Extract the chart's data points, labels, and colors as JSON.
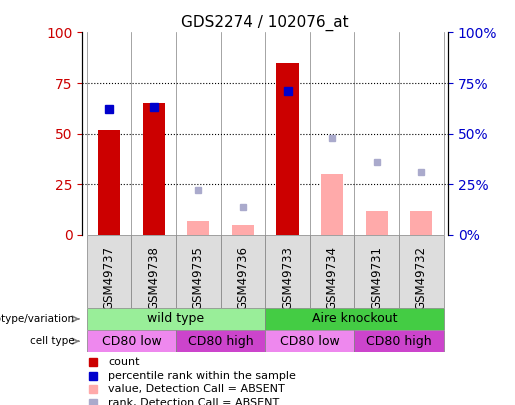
{
  "title": "GDS2274 / 102076_at",
  "samples": [
    "GSM49737",
    "GSM49738",
    "GSM49735",
    "GSM49736",
    "GSM49733",
    "GSM49734",
    "GSM49731",
    "GSM49732"
  ],
  "count_values": [
    52,
    65,
    null,
    null,
    85,
    null,
    null,
    null
  ],
  "rank_values": [
    62,
    63,
    null,
    null,
    71,
    null,
    null,
    null
  ],
  "count_absent": [
    null,
    null,
    7,
    5,
    null,
    30,
    12,
    12
  ],
  "rank_absent": [
    null,
    null,
    22,
    14,
    null,
    48,
    36,
    31
  ],
  "count_color": "#cc0000",
  "rank_color": "#0000cc",
  "count_absent_color": "#ffaaaa",
  "rank_absent_color": "#aaaacc",
  "ylim_left": [
    0,
    100
  ],
  "ylim_right": [
    0,
    100
  ],
  "yticks": [
    0,
    25,
    50,
    75,
    100
  ],
  "genotype_groups": [
    {
      "label": "wild type",
      "start": 0,
      "end": 4,
      "color": "#99ee99"
    },
    {
      "label": "Aire knockout",
      "start": 4,
      "end": 8,
      "color": "#44cc44"
    }
  ],
  "cell_type_groups": [
    {
      "label": "CD80 low",
      "start": 0,
      "end": 2,
      "color": "#ee88ee"
    },
    {
      "label": "CD80 high",
      "start": 2,
      "end": 4,
      "color": "#cc44cc"
    },
    {
      "label": "CD80 low",
      "start": 4,
      "end": 6,
      "color": "#ee88ee"
    },
    {
      "label": "CD80 high",
      "start": 6,
      "end": 8,
      "color": "#cc44cc"
    }
  ],
  "legend_items": [
    {
      "label": "count",
      "color": "#cc0000"
    },
    {
      "label": "percentile rank within the sample",
      "color": "#0000cc"
    },
    {
      "label": "value, Detection Call = ABSENT",
      "color": "#ffaaaa"
    },
    {
      "label": "rank, Detection Call = ABSENT",
      "color": "#aaaacc"
    }
  ],
  "bar_width": 0.5,
  "marker_size": 6,
  "tick_label_fontsize": 8.5,
  "annot_fontsize": 9,
  "legend_fontsize": 8
}
